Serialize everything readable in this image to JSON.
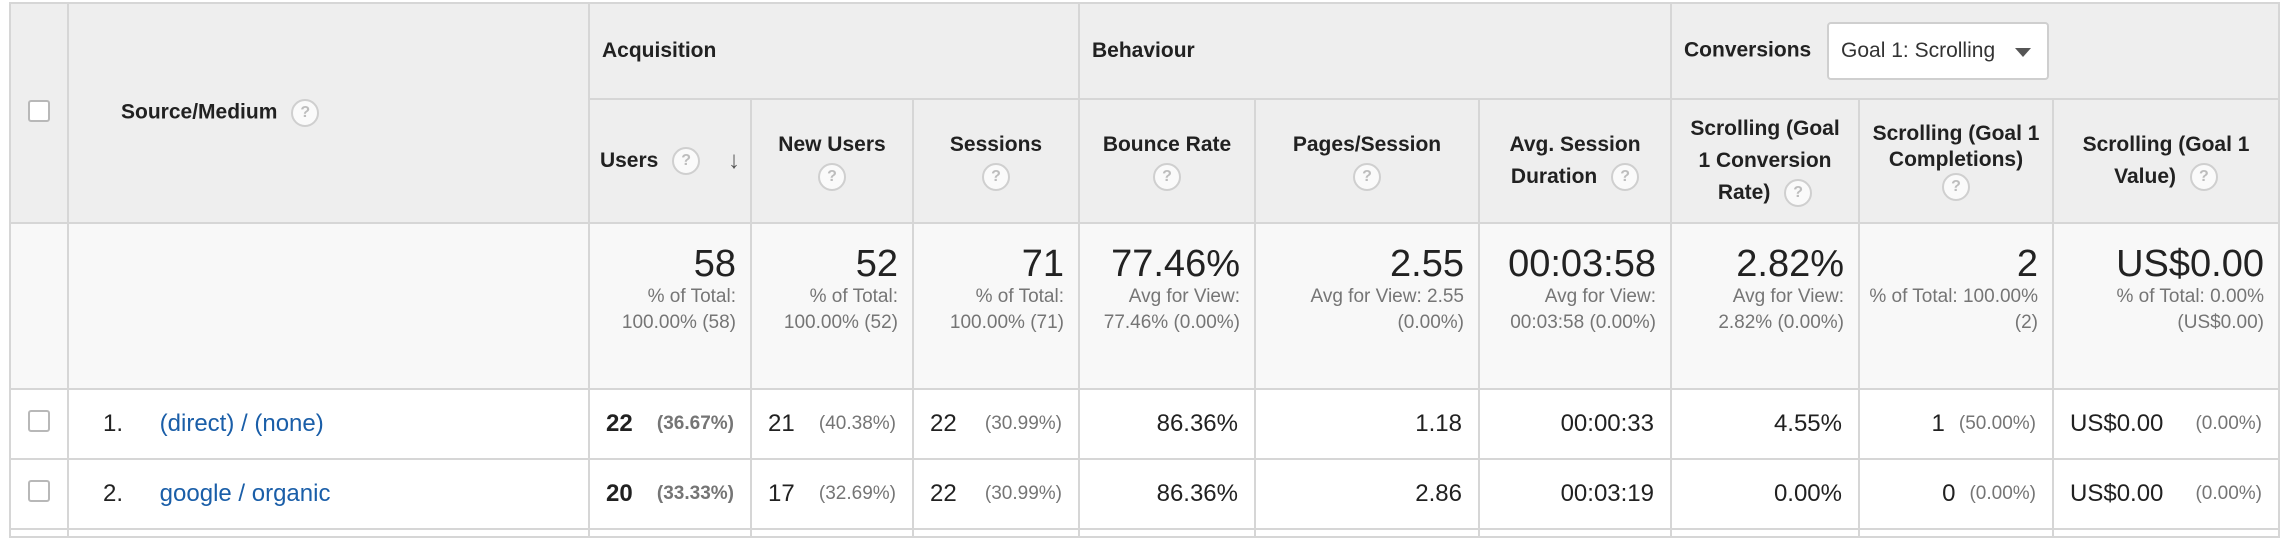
{
  "groups": {
    "acquisition": "Acquisition",
    "behaviour": "Behaviour",
    "conversions": "Conversions",
    "goal_select": "Goal 1: Scrolling"
  },
  "columns": {
    "source_medium": "Source/Medium",
    "users": "Users",
    "new_users": "New Users",
    "sessions": "Sessions",
    "bounce_rate": "Bounce Rate",
    "pages_session": "Pages/Session",
    "avg_session_duration": "Avg. Session Duration",
    "conv_rate": "Scrolling (Goal 1 Conversion Rate)",
    "completions": "Scrolling (Goal 1 Completions)",
    "value": "Scrolling (Goal 1 Value)"
  },
  "help_icon": "?",
  "totals": {
    "users": {
      "value": "58",
      "sub": "% of Total: 100.00% (58)"
    },
    "new_users": {
      "value": "52",
      "sub": "% of Total: 100.00% (52)"
    },
    "sessions": {
      "value": "71",
      "sub": "% of Total: 100.00% (71)"
    },
    "bounce_rate": {
      "value": "77.46%",
      "sub": "Avg for View: 77.46% (0.00%)"
    },
    "pages_session": {
      "value": "2.55",
      "sub": "Avg for View: 2.55 (0.00%)"
    },
    "avg_session_duration": {
      "value": "00:03:58",
      "sub": "Avg for View: 00:03:58 (0.00%)"
    },
    "conv_rate": {
      "value": "2.82%",
      "sub": "Avg for View: 2.82% (0.00%)"
    },
    "completions": {
      "value": "2",
      "sub": "% of Total: 100.00% (2)"
    },
    "value": {
      "value": "US$0.00",
      "sub": "% of Total: 0.00% (US$0.00)"
    }
  },
  "rows": [
    {
      "index": "1.",
      "source": "(direct) / (none)",
      "users": "22",
      "users_pct": "(36.67%)",
      "new_users": "21",
      "new_users_pct": "(40.38%)",
      "sessions": "22",
      "sessions_pct": "(30.99%)",
      "bounce_rate": "86.36%",
      "pages_session": "1.18",
      "avg_session_duration": "00:00:33",
      "conv_rate": "4.55%",
      "completions": "1",
      "completions_pct": "(50.00%)",
      "value": "US$0.00",
      "value_pct": "(0.00%)"
    },
    {
      "index": "2.",
      "source": "google / organic",
      "users": "20",
      "users_pct": "(33.33%)",
      "new_users": "17",
      "new_users_pct": "(32.69%)",
      "sessions": "22",
      "sessions_pct": "(30.99%)",
      "bounce_rate": "86.36%",
      "pages_session": "2.86",
      "avg_session_duration": "00:03:19",
      "conv_rate": "0.00%",
      "completions": "0",
      "completions_pct": "(0.00%)",
      "value": "US$0.00",
      "value_pct": "(0.00%)"
    }
  ],
  "colors": {
    "link": "#1a5ea8",
    "header_bg": "#eeeeee",
    "border": "#d6d6d6"
  }
}
